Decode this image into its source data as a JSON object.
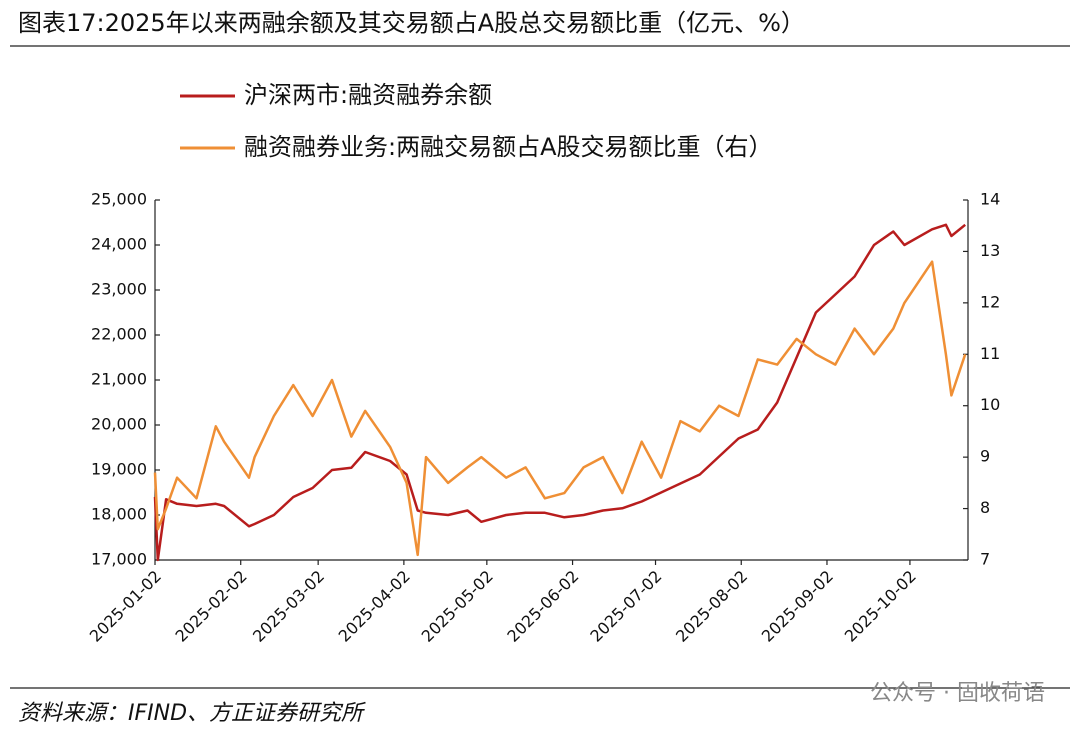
{
  "chart_data": {
    "type": "line",
    "title": "图表17:2025年以来两融余额及其交易额占A股总交易额比重（亿元、%）",
    "source": "资料来源：IFIND、方正证券研究所",
    "watermark": "公众号 · 固收荷语",
    "x": [
      "2025-01-02",
      "2025-01-03",
      "2025-01-06",
      "2025-01-10",
      "2025-01-17",
      "2025-01-24",
      "2025-01-27",
      "2025-02-05",
      "2025-02-07",
      "2025-02-14",
      "2025-02-21",
      "2025-02-28",
      "2025-03-07",
      "2025-03-14",
      "2025-03-19",
      "2025-03-28",
      "2025-04-03",
      "2025-04-07",
      "2025-04-10",
      "2025-04-18",
      "2025-04-25",
      "2025-04-30",
      "2025-05-09",
      "2025-05-16",
      "2025-05-23",
      "2025-05-30",
      "2025-06-06",
      "2025-06-13",
      "2025-06-20",
      "2025-06-27",
      "2025-07-04",
      "2025-07-11",
      "2025-07-18",
      "2025-07-25",
      "2025-08-01",
      "2025-08-08",
      "2025-08-15",
      "2025-08-22",
      "2025-08-29",
      "2025-09-05",
      "2025-09-12",
      "2025-09-19",
      "2025-09-26",
      "2025-09-30",
      "2025-10-10",
      "2025-10-15",
      "2025-10-17",
      "2025-10-22"
    ],
    "series": [
      {
        "name": "沪深两市:融资融券余额",
        "color": "#b81d1d",
        "values": [
          18400,
          17000,
          18350,
          18250,
          18200,
          18250,
          18200,
          17750,
          17800,
          18000,
          18400,
          18600,
          19000,
          19050,
          19400,
          19200,
          18900,
          18100,
          18050,
          18000,
          18100,
          17850,
          18000,
          18050,
          18050,
          17950,
          18000,
          18100,
          18150,
          18300,
          18500,
          18700,
          18900,
          19300,
          19700,
          19900,
          20500,
          21500,
          22500,
          22900,
          23300,
          24000,
          24300,
          24000,
          24350,
          24450,
          24200,
          24450
        ]
      },
      {
        "name": "融资融券业务:两融交易额占A股交易额比重（右）",
        "color": "#ef8f35",
        "axis": "y2",
        "values": [
          8.7,
          7.6,
          8.0,
          8.6,
          8.2,
          9.6,
          9.3,
          8.6,
          9.0,
          9.8,
          10.4,
          9.8,
          10.5,
          9.4,
          9.9,
          9.2,
          8.5,
          7.1,
          9.0,
          8.5,
          8.8,
          9.0,
          8.6,
          8.8,
          8.2,
          8.3,
          8.8,
          9.0,
          8.3,
          9.3,
          8.6,
          9.7,
          9.5,
          10.0,
          9.8,
          10.9,
          10.8,
          11.3,
          11.0,
          10.8,
          11.5,
          11.0,
          11.5,
          12.0,
          12.8,
          11.0,
          10.2,
          11.0
        ]
      }
    ],
    "xlim": [
      "2025-01-02",
      "2025-10-23"
    ],
    "xticks": [
      "2025-01-02",
      "2025-02-02",
      "2025-03-02",
      "2025-04-02",
      "2025-05-02",
      "2025-06-02",
      "2025-07-02",
      "2025-08-02",
      "2025-09-02",
      "2025-10-02"
    ],
    "ylim": [
      17000,
      25000
    ],
    "yticks": [
      {
        "value": 17000,
        "label": "17,000"
      },
      {
        "value": 18000,
        "label": "18,000"
      },
      {
        "value": 19000,
        "label": "19,000"
      },
      {
        "value": 20000,
        "label": "20,000"
      },
      {
        "value": 21000,
        "label": "21,000"
      },
      {
        "value": 22000,
        "label": "22,000"
      },
      {
        "value": 23000,
        "label": "23,000"
      },
      {
        "value": 24000,
        "label": "24,000"
      },
      {
        "value": 25000,
        "label": "25,000"
      }
    ],
    "y2lim": [
      7,
      14
    ],
    "y2ticks": [
      7,
      8,
      9,
      10,
      11,
      12,
      13,
      14
    ],
    "grid": false
  }
}
